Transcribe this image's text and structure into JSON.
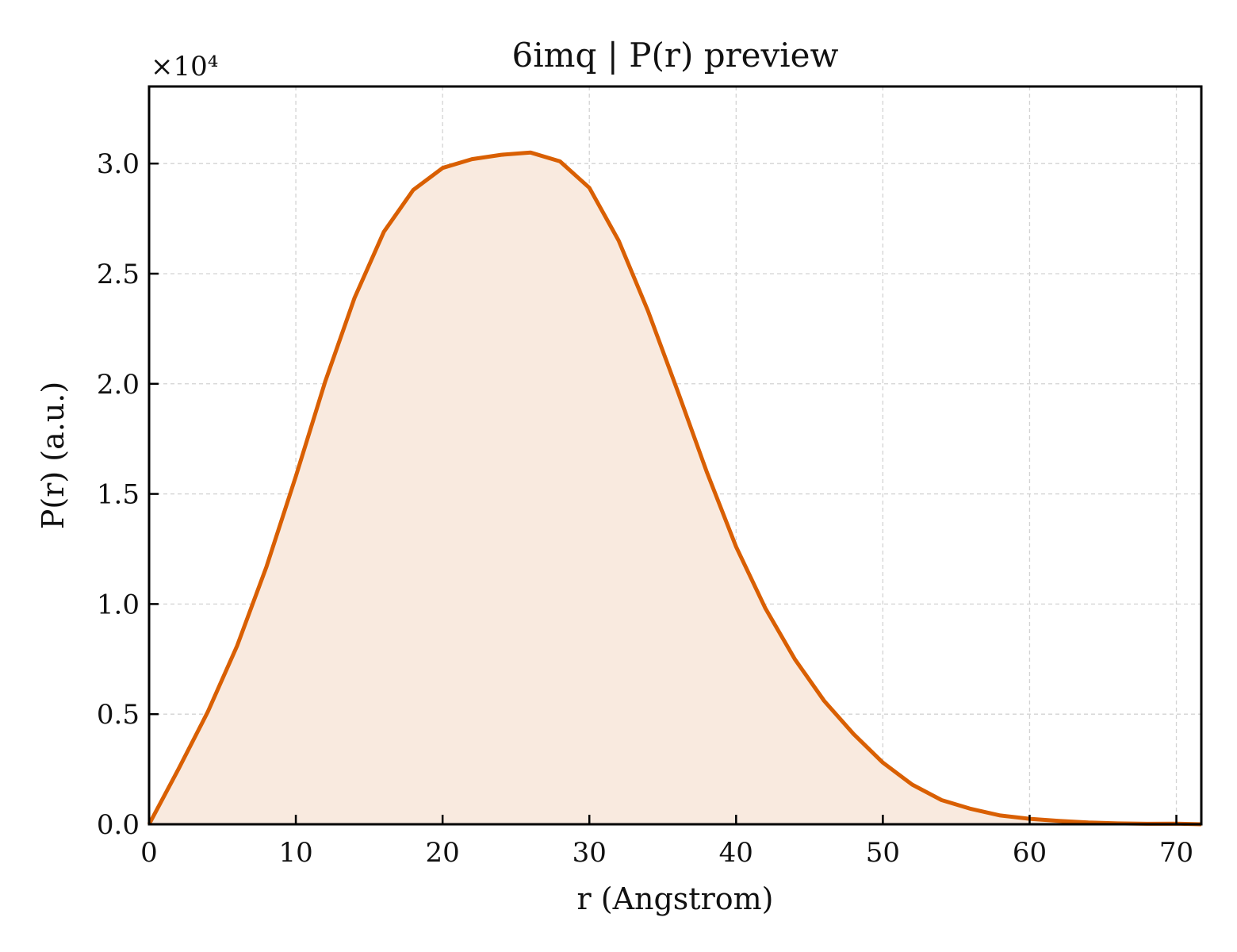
{
  "chart_data": {
    "type": "area",
    "title": "6imq | P(r) preview",
    "xlabel": "r (Angstrom)",
    "ylabel": "P(r) (a.u.)",
    "y_multiplier_label": "×10⁴",
    "xlim": [
      0,
      71.7
    ],
    "ylim": [
      0,
      3.35
    ],
    "x_ticks": [
      0,
      10,
      20,
      30,
      40,
      50,
      60,
      70
    ],
    "y_ticks": [
      0.0,
      0.5,
      1.0,
      1.5,
      2.0,
      2.5,
      3.0
    ],
    "x_tick_labels": [
      "0",
      "10",
      "20",
      "30",
      "40",
      "50",
      "60",
      "70"
    ],
    "y_tick_labels": [
      "0.0",
      "0.5",
      "1.0",
      "1.5",
      "2.0",
      "2.5",
      "3.0"
    ],
    "grid": true,
    "colors": {
      "line": "#d95f02",
      "fill": "#f9eadf"
    },
    "series": [
      {
        "x": [
          0,
          2,
          4,
          6,
          8,
          10,
          12,
          14,
          16,
          18,
          20,
          22,
          24,
          26,
          28,
          30,
          32,
          34,
          36,
          38,
          40,
          42,
          44,
          46,
          48,
          50,
          52,
          54,
          56,
          58,
          60,
          62,
          64,
          66,
          68,
          70,
          71.7
        ],
        "y": [
          0.0,
          0.25,
          0.51,
          0.81,
          1.17,
          1.58,
          2.01,
          2.39,
          2.69,
          2.88,
          2.98,
          3.02,
          3.04,
          3.05,
          3.01,
          2.89,
          2.65,
          2.33,
          1.97,
          1.6,
          1.26,
          0.98,
          0.75,
          0.56,
          0.41,
          0.28,
          0.18,
          0.11,
          0.07,
          0.04,
          0.025,
          0.015,
          0.008,
          0.004,
          0.002,
          0.003,
          0.0
        ]
      }
    ]
  }
}
